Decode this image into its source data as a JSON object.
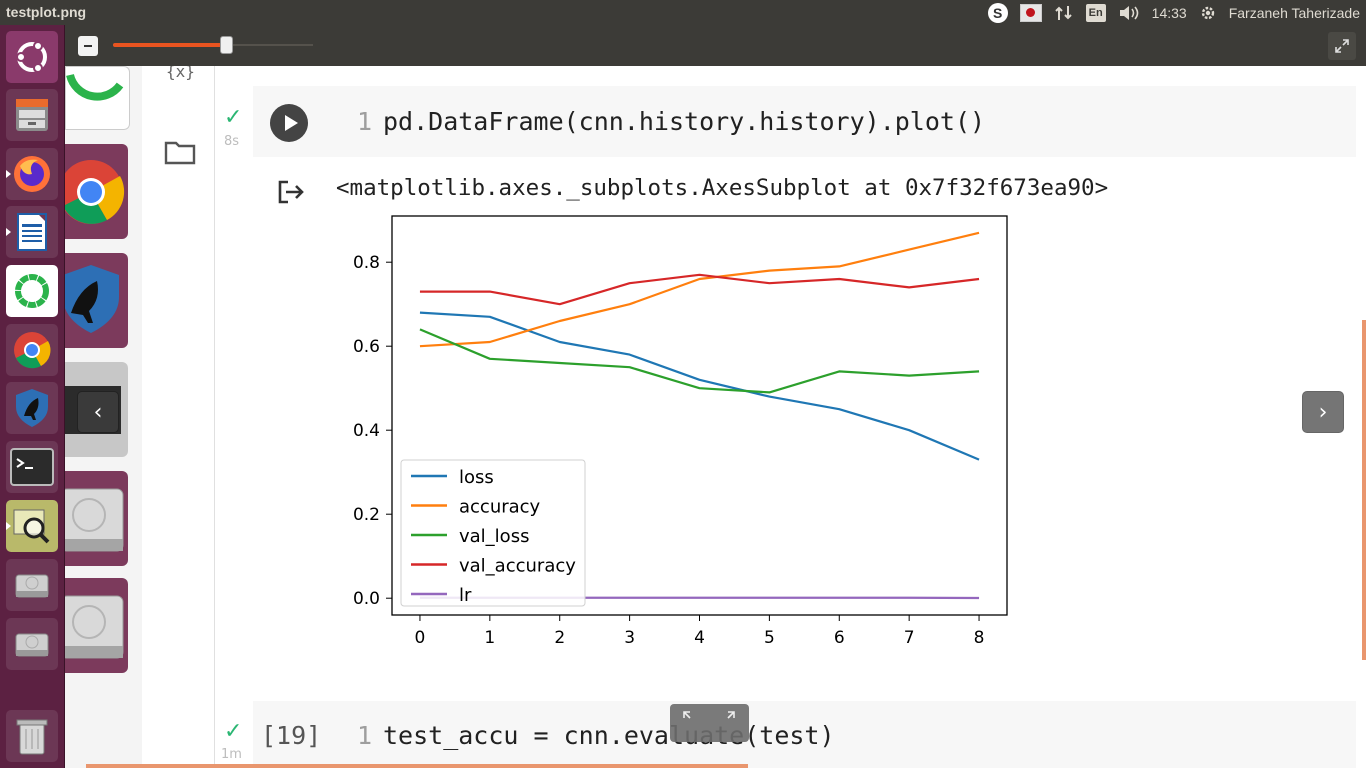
{
  "window": {
    "title": "testplot.png"
  },
  "system_tray": {
    "clock": "14:33",
    "user": "Farzaneh Taherizade",
    "keyboard": "En",
    "skype_glyph": "S"
  },
  "launcher": {
    "items": [
      "ubuntu-dash",
      "files",
      "firefox",
      "libreoffice-writer",
      "rstudio",
      "chrome",
      "tor-browser",
      "terminal",
      "image-viewer",
      "drive-1",
      "drive-2",
      "trash"
    ]
  },
  "notebook": {
    "cell1": {
      "line_number": "1",
      "code": "pd.DataFrame(cnn.history.history).plot()",
      "exec_time": "8s",
      "output_text": "<matplotlib.axes._subplots.AxesSubplot at 0x7f32f673ea90>"
    },
    "cell2": {
      "exec_count": "[19]",
      "line_number": "1",
      "code": "test_accu = cnn.evaluate(test)",
      "exec_time": "1m"
    }
  },
  "chart_data": {
    "type": "line",
    "x": [
      0,
      1,
      2,
      3,
      4,
      5,
      6,
      7,
      8
    ],
    "series": [
      {
        "name": "loss",
        "color": "#1f77b4",
        "values": [
          0.68,
          0.67,
          0.61,
          0.58,
          0.52,
          0.48,
          0.45,
          0.4,
          0.33
        ]
      },
      {
        "name": "accuracy",
        "color": "#ff7f0e",
        "values": [
          0.6,
          0.61,
          0.66,
          0.7,
          0.76,
          0.78,
          0.79,
          0.83,
          0.87
        ]
      },
      {
        "name": "val_loss",
        "color": "#2ca02c",
        "values": [
          0.64,
          0.57,
          0.56,
          0.55,
          0.5,
          0.49,
          0.54,
          0.53,
          0.54
        ]
      },
      {
        "name": "val_accuracy",
        "color": "#d62728",
        "values": [
          0.73,
          0.73,
          0.7,
          0.75,
          0.77,
          0.75,
          0.76,
          0.74,
          0.76
        ]
      },
      {
        "name": "lr",
        "color": "#9467bd",
        "values": [
          0.001,
          0.001,
          0.001,
          0.001,
          0.001,
          0.001,
          0.001,
          0.001,
          0.0005
        ]
      }
    ],
    "xticks": [
      "0",
      "1",
      "2",
      "3",
      "4",
      "5",
      "6",
      "7",
      "8"
    ],
    "yticks": [
      "0.0",
      "0.2",
      "0.4",
      "0.6",
      "0.8"
    ],
    "xlim": [
      -0.4,
      8.4
    ],
    "ylim": [
      -0.04,
      0.91
    ],
    "legend": "lower-left",
    "grid": false
  }
}
